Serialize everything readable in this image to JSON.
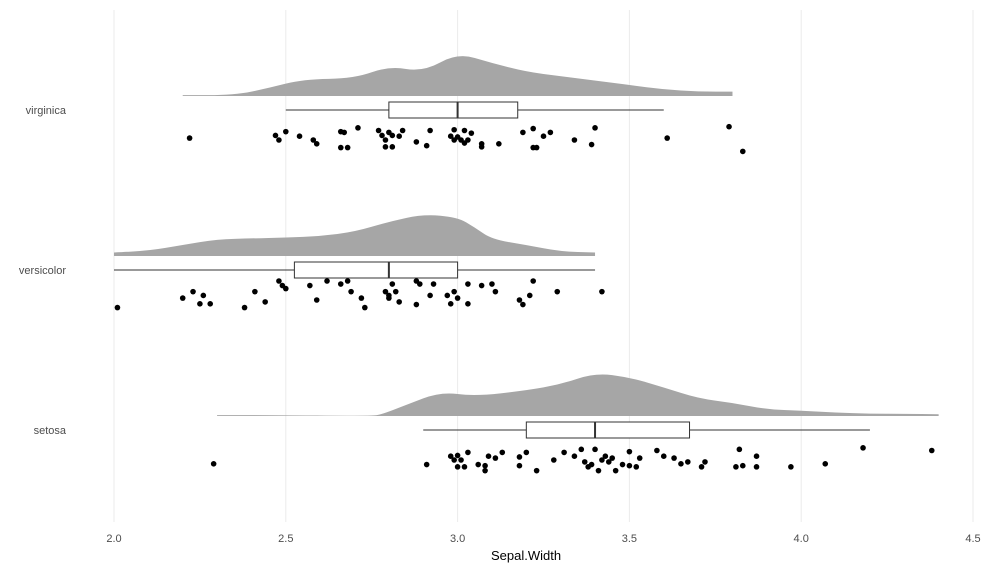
{
  "chart_data": {
    "type": "raincloud",
    "xlabel": "Sepal.Width",
    "xlim": [
      2.0,
      4.5
    ],
    "x_ticks": [
      "2.0",
      "2.5",
      "3.0",
      "3.5",
      "4.0",
      "4.5"
    ],
    "grid": true,
    "colors": {
      "density": "#a6a6a6",
      "points": "#000000",
      "box_stroke": "#333333",
      "grid": "#ebebeb"
    },
    "categories": [
      {
        "name": "virginica",
        "density": {
          "range": [
            2.2,
            3.8
          ],
          "points": [
            [
              2.2,
              0.02
            ],
            [
              2.35,
              0.02
            ],
            [
              2.45,
              0.18
            ],
            [
              2.55,
              0.38
            ],
            [
              2.7,
              0.4
            ],
            [
              2.8,
              0.68
            ],
            [
              2.9,
              0.55
            ],
            [
              3.0,
              0.98
            ],
            [
              3.1,
              0.75
            ],
            [
              3.2,
              0.55
            ],
            [
              3.3,
              0.45
            ],
            [
              3.4,
              0.35
            ],
            [
              3.5,
              0.25
            ],
            [
              3.6,
              0.15
            ],
            [
              3.7,
              0.1
            ],
            [
              3.8,
              0.1
            ]
          ]
        },
        "box": {
          "min": 2.5,
          "q1": 2.8,
          "median": 3.0,
          "q3": 3.175,
          "max": 3.6
        },
        "points": [
          [
            2.22,
            0.05
          ],
          [
            2.48,
            0.0
          ],
          [
            2.47,
            0.12
          ],
          [
            2.5,
            0.22
          ],
          [
            2.54,
            0.1
          ],
          [
            2.58,
            0.0
          ],
          [
            2.59,
            -0.1
          ],
          [
            2.66,
            0.22
          ],
          [
            2.66,
            -0.2
          ],
          [
            2.68,
            -0.2
          ],
          [
            2.67,
            0.2
          ],
          [
            2.71,
            0.32
          ],
          [
            2.77,
            0.25
          ],
          [
            2.78,
            0.12
          ],
          [
            2.79,
            0.0
          ],
          [
            2.79,
            -0.18
          ],
          [
            2.81,
            -0.18
          ],
          [
            2.81,
            0.12
          ],
          [
            2.8,
            0.2
          ],
          [
            2.83,
            0.1
          ],
          [
            2.84,
            0.25
          ],
          [
            2.88,
            -0.05
          ],
          [
            2.91,
            -0.15
          ],
          [
            2.92,
            0.25
          ],
          [
            2.98,
            0.1
          ],
          [
            2.99,
            0.27
          ],
          [
            2.99,
            0.0
          ],
          [
            3.0,
            0.08
          ],
          [
            3.01,
            0.0
          ],
          [
            3.02,
            -0.08
          ],
          [
            3.02,
            0.25
          ],
          [
            3.03,
            0.0
          ],
          [
            3.04,
            0.18
          ],
          [
            3.07,
            -0.18
          ],
          [
            3.07,
            -0.1
          ],
          [
            3.12,
            -0.1
          ],
          [
            3.19,
            0.2
          ],
          [
            3.22,
            0.3
          ],
          [
            3.22,
            -0.2
          ],
          [
            3.23,
            -0.2
          ],
          [
            3.25,
            0.1
          ],
          [
            3.27,
            0.2
          ],
          [
            3.34,
            0.0
          ],
          [
            3.39,
            -0.12
          ],
          [
            3.4,
            0.32
          ],
          [
            3.61,
            0.05
          ],
          [
            3.79,
            0.35
          ],
          [
            3.83,
            -0.3
          ]
        ]
      },
      {
        "name": "versicolor",
        "density": {
          "range": [
            2.0,
            3.4
          ],
          "points": [
            [
              2.0,
              0.08
            ],
            [
              2.1,
              0.12
            ],
            [
              2.2,
              0.25
            ],
            [
              2.3,
              0.38
            ],
            [
              2.4,
              0.4
            ],
            [
              2.5,
              0.42
            ],
            [
              2.6,
              0.45
            ],
            [
              2.7,
              0.55
            ],
            [
              2.8,
              0.78
            ],
            [
              2.9,
              0.95
            ],
            [
              3.0,
              0.88
            ],
            [
              3.05,
              0.65
            ],
            [
              3.1,
              0.38
            ],
            [
              3.2,
              0.25
            ],
            [
              3.3,
              0.1
            ],
            [
              3.4,
              0.08
            ]
          ]
        },
        "box": {
          "min": 2.0,
          "q1": 2.525,
          "median": 2.8,
          "q3": 3.0,
          "max": 3.4
        },
        "points": [
          [
            2.01,
            -0.2
          ],
          [
            2.2,
            0.05
          ],
          [
            2.23,
            0.22
          ],
          [
            2.25,
            -0.1
          ],
          [
            2.26,
            0.12
          ],
          [
            2.28,
            -0.1
          ],
          [
            2.38,
            -0.2
          ],
          [
            2.41,
            0.22
          ],
          [
            2.44,
            -0.05
          ],
          [
            2.48,
            0.5
          ],
          [
            2.49,
            0.38
          ],
          [
            2.5,
            0.3
          ],
          [
            2.57,
            0.38
          ],
          [
            2.59,
            0.0
          ],
          [
            2.62,
            0.5
          ],
          [
            2.66,
            0.42
          ],
          [
            2.68,
            0.5
          ],
          [
            2.69,
            0.22
          ],
          [
            2.73,
            -0.2
          ],
          [
            2.72,
            0.05
          ],
          [
            2.79,
            0.22
          ],
          [
            2.8,
            0.05
          ],
          [
            2.8,
            0.12
          ],
          [
            2.81,
            0.42
          ],
          [
            2.82,
            0.22
          ],
          [
            2.83,
            -0.05
          ],
          [
            2.88,
            -0.12
          ],
          [
            2.88,
            0.5
          ],
          [
            2.89,
            0.42
          ],
          [
            2.92,
            0.12
          ],
          [
            2.93,
            0.42
          ],
          [
            2.97,
            0.12
          ],
          [
            2.98,
            -0.1
          ],
          [
            2.99,
            0.22
          ],
          [
            3.0,
            0.05
          ],
          [
            3.03,
            -0.1
          ],
          [
            3.03,
            0.42
          ],
          [
            3.07,
            0.38
          ],
          [
            3.1,
            0.42
          ],
          [
            3.11,
            0.22
          ],
          [
            3.18,
            0.0
          ],
          [
            3.19,
            -0.12
          ],
          [
            3.21,
            0.12
          ],
          [
            3.22,
            0.5
          ],
          [
            3.29,
            0.22
          ],
          [
            3.42,
            0.22
          ]
        ]
      },
      {
        "name": "setosa",
        "density": {
          "range": [
            2.3,
            4.4
          ],
          "points": [
            [
              2.3,
              0.02
            ],
            [
              2.43,
              0.02
            ],
            [
              2.75,
              0.0
            ],
            [
              2.78,
              0.04
            ],
            [
              2.85,
              0.25
            ],
            [
              2.95,
              0.55
            ],
            [
              3.05,
              0.45
            ],
            [
              3.2,
              0.58
            ],
            [
              3.3,
              0.72
            ],
            [
              3.4,
              0.98
            ],
            [
              3.5,
              0.88
            ],
            [
              3.6,
              0.65
            ],
            [
              3.7,
              0.4
            ],
            [
              3.8,
              0.3
            ],
            [
              3.9,
              0.15
            ],
            [
              4.0,
              0.12
            ],
            [
              4.1,
              0.08
            ],
            [
              4.2,
              0.05
            ],
            [
              4.3,
              0.05
            ],
            [
              4.4,
              0.04
            ]
          ]
        },
        "box": {
          "min": 2.9,
          "q1": 3.2,
          "median": 3.4,
          "q3": 3.675,
          "max": 4.2
        },
        "points": [
          [
            2.29,
            -0.1
          ],
          [
            2.91,
            -0.12
          ],
          [
            2.98,
            0.1
          ],
          [
            2.99,
            0.0
          ],
          [
            3.0,
            0.12
          ],
          [
            3.0,
            -0.18
          ],
          [
            3.01,
            0.0
          ],
          [
            3.02,
            -0.18
          ],
          [
            3.03,
            0.2
          ],
          [
            3.06,
            -0.12
          ],
          [
            3.08,
            -0.15
          ],
          [
            3.08,
            -0.28
          ],
          [
            3.09,
            0.1
          ],
          [
            3.11,
            0.05
          ],
          [
            3.13,
            0.2
          ],
          [
            3.18,
            0.08
          ],
          [
            3.18,
            -0.15
          ],
          [
            3.2,
            0.2
          ],
          [
            3.23,
            -0.28
          ],
          [
            3.28,
            0.0
          ],
          [
            3.31,
            0.2
          ],
          [
            3.34,
            0.1
          ],
          [
            3.36,
            0.28
          ],
          [
            3.37,
            -0.05
          ],
          [
            3.38,
            -0.18
          ],
          [
            3.39,
            -0.12
          ],
          [
            3.4,
            0.28
          ],
          [
            3.41,
            -0.28
          ],
          [
            3.42,
            0.0
          ],
          [
            3.43,
            0.1
          ],
          [
            3.44,
            -0.05
          ],
          [
            3.45,
            0.05
          ],
          [
            3.46,
            -0.28
          ],
          [
            3.48,
            -0.12
          ],
          [
            3.5,
            -0.15
          ],
          [
            3.5,
            0.22
          ],
          [
            3.52,
            -0.18
          ],
          [
            3.53,
            0.05
          ],
          [
            3.58,
            0.25
          ],
          [
            3.6,
            0.1
          ],
          [
            3.63,
            0.05
          ],
          [
            3.65,
            -0.1
          ],
          [
            3.67,
            -0.05
          ],
          [
            3.71,
            -0.18
          ],
          [
            3.72,
            -0.05
          ],
          [
            3.81,
            -0.18
          ],
          [
            3.82,
            0.28
          ],
          [
            3.83,
            -0.15
          ],
          [
            3.87,
            0.1
          ],
          [
            3.87,
            -0.18
          ],
          [
            3.97,
            -0.18
          ],
          [
            4.07,
            -0.1
          ],
          [
            4.18,
            0.32
          ],
          [
            4.38,
            0.25
          ]
        ]
      }
    ]
  }
}
